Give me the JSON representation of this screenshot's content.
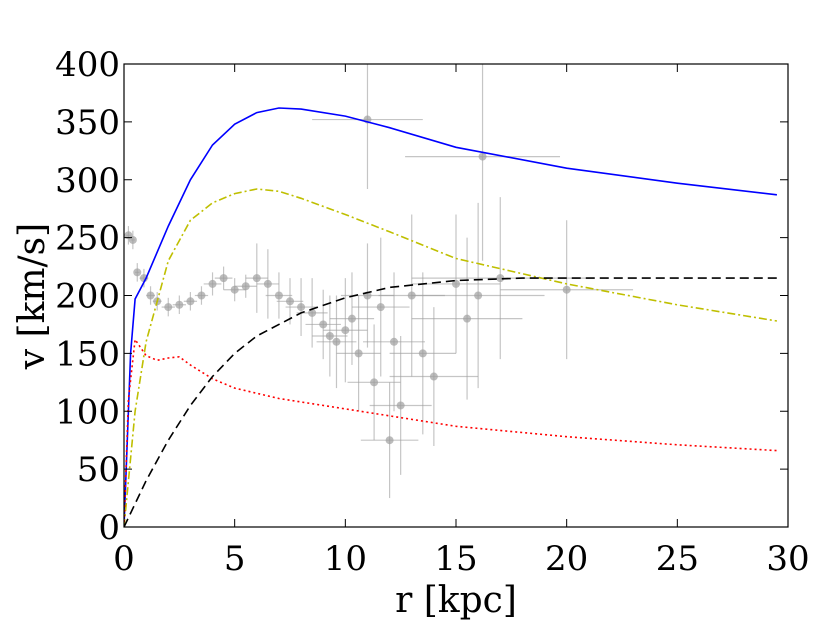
{
  "chart_data": {
    "type": "line",
    "xlabel": "r [kpc]",
    "ylabel": "v [km/s]",
    "xlim": [
      0,
      30
    ],
    "xticks": [
      0,
      5,
      10,
      15,
      20,
      25,
      30
    ],
    "ylim": [
      0,
      400
    ],
    "yticks": [
      0,
      50,
      100,
      150,
      200,
      250,
      300,
      350,
      400
    ],
    "series": [
      {
        "color": "#0000ff",
        "linestyle": "solid",
        "x": [
          0,
          0.3,
          0.5,
          1,
          2,
          3,
          4,
          5,
          6,
          7,
          8,
          10,
          12,
          15,
          20,
          25,
          29.5
        ],
        "values": [
          0,
          150,
          197,
          215,
          260,
          300,
          330,
          348,
          358,
          362,
          361,
          355,
          345,
          328,
          310,
          297,
          287
        ]
      },
      {
        "color": "#bfbf00",
        "linestyle": "dashdot",
        "x": [
          0,
          0.5,
          1,
          2,
          3,
          4,
          5,
          6,
          7,
          8,
          10,
          12,
          15,
          20,
          25,
          29.5
        ],
        "values": [
          0,
          100,
          160,
          230,
          265,
          280,
          288,
          292,
          290,
          284,
          270,
          255,
          232,
          210,
          192,
          178
        ]
      },
      {
        "color": "#ff0000",
        "linestyle": "dotted",
        "x": [
          0,
          0.2,
          0.5,
          1,
          1.5,
          2,
          2.5,
          3,
          4,
          5,
          7,
          10,
          15,
          20,
          25,
          29.5
        ],
        "values": [
          0,
          110,
          162,
          148,
          144,
          146,
          147,
          140,
          128,
          120,
          111,
          102,
          87,
          78,
          71,
          66
        ]
      },
      {
        "color": "#000000",
        "linestyle": "dashed",
        "x": [
          0,
          1,
          2,
          3,
          4,
          5,
          6,
          8,
          10,
          12,
          15,
          18,
          20,
          25,
          29.5
        ],
        "values": [
          0,
          40,
          75,
          105,
          130,
          150,
          165,
          185,
          198,
          207,
          213,
          215,
          215,
          215,
          215
        ]
      }
    ],
    "points": {
      "color": "#a0a0a0",
      "x": [
        0.2,
        0.4,
        0.6,
        0.9,
        1.2,
        1.5,
        2.0,
        2.5,
        3.0,
        3.5,
        4.0,
        4.5,
        5.0,
        5.5,
        6.0,
        6.5,
        7.0,
        7.5,
        8.0,
        8.5,
        9.0,
        9.3,
        9.6,
        10.0,
        10.3,
        10.6,
        11.0,
        11.3,
        11.6,
        12.0,
        12.2,
        12.5,
        13.0,
        13.5,
        14.0,
        15.0,
        15.5,
        16.0,
        16.2,
        17.0,
        20.0,
        11.0
      ],
      "values": [
        252,
        248,
        220,
        215,
        200,
        195,
        190,
        192,
        195,
        200,
        210,
        215,
        205,
        208,
        215,
        210,
        200,
        195,
        190,
        185,
        175,
        165,
        160,
        170,
        180,
        150,
        200,
        125,
        190,
        75,
        160,
        105,
        200,
        150,
        130,
        210,
        180,
        200,
        320,
        215,
        205,
        352
      ],
      "yerr": [
        8,
        8,
        8,
        8,
        8,
        8,
        8,
        8,
        8,
        8,
        10,
        10,
        10,
        10,
        30,
        30,
        20,
        20,
        25,
        30,
        30,
        35,
        40,
        45,
        40,
        50,
        45,
        50,
        60,
        50,
        60,
        60,
        70,
        70,
        60,
        60,
        70,
        80,
        90,
        70,
        60,
        60
      ],
      "xerr": [
        0.1,
        0.1,
        0.1,
        0.2,
        0.2,
        0.2,
        0.3,
        0.3,
        0.3,
        0.3,
        0.4,
        0.4,
        0.5,
        0.5,
        0.5,
        0.5,
        0.6,
        0.6,
        0.7,
        0.7,
        0.8,
        0.8,
        0.9,
        1,
        1,
        1,
        1.2,
        1.2,
        1.3,
        1.3,
        1.4,
        1.4,
        1.5,
        1.5,
        2,
        2,
        2.5,
        3,
        3.5,
        4,
        3,
        2.5
      ]
    }
  }
}
